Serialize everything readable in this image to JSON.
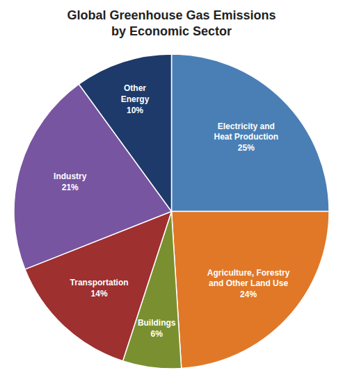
{
  "chart_data": {
    "type": "pie",
    "title": "Global Greenhouse Gas Emissions",
    "subtitle": "by Economic Sector",
    "categories": [
      "Electricity and\nHeat Production",
      "Agriculture, Forestry\nand Other Land Use",
      "Buildings",
      "Transportation",
      "Industry",
      "Other\nEnergy"
    ],
    "values": [
      25,
      24,
      6,
      14,
      21,
      10
    ],
    "value_labels": [
      "25%",
      "24%",
      "6%",
      "14%",
      "21%",
      "10%"
    ],
    "colors": [
      "#4a7fb5",
      "#e07828",
      "#7a9030",
      "#9e3030",
      "#7855a0",
      "#1e3a6a"
    ],
    "data_labels": true
  }
}
